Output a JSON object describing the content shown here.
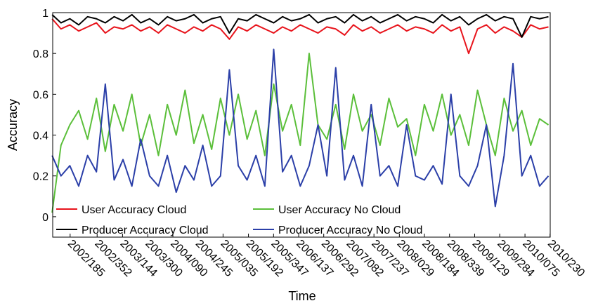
{
  "chart_data": {
    "type": "line",
    "x_label": "Time",
    "y_label": "Accuracy",
    "x": [
      2002.2,
      2002.35,
      2002.5,
      2002.65,
      2002.8,
      2002.95,
      2003.1,
      2003.25,
      2003.4,
      2003.55,
      2003.7,
      2003.85,
      2004.0,
      2004.15,
      2004.3,
      2004.45,
      2004.6,
      2004.75,
      2004.9,
      2005.05,
      2005.2,
      2005.35,
      2005.5,
      2005.65,
      2005.8,
      2005.95,
      2006.1,
      2006.25,
      2006.4,
      2006.55,
      2006.7,
      2006.85,
      2007.0,
      2007.15,
      2007.3,
      2007.45,
      2007.6,
      2007.75,
      2007.9,
      2008.05,
      2008.2,
      2008.35,
      2008.5,
      2008.65,
      2008.8,
      2008.95,
      2009.1,
      2009.25,
      2009.4,
      2009.55,
      2009.7,
      2009.85,
      2010.0,
      2010.15,
      2010.3,
      2010.45,
      2010.6
    ],
    "series": [
      {
        "name": "User Accuracy Cloud",
        "color": "#e8141c",
        "values": [
          0.97,
          0.92,
          0.94,
          0.91,
          0.93,
          0.95,
          0.9,
          0.93,
          0.92,
          0.94,
          0.91,
          0.93,
          0.9,
          0.94,
          0.92,
          0.9,
          0.93,
          0.91,
          0.94,
          0.92,
          0.87,
          0.93,
          0.91,
          0.94,
          0.92,
          0.9,
          0.93,
          0.91,
          0.94,
          0.92,
          0.9,
          0.93,
          0.92,
          0.89,
          0.94,
          0.91,
          0.93,
          0.9,
          0.92,
          0.94,
          0.91,
          0.93,
          0.92,
          0.9,
          0.94,
          0.91,
          0.93,
          0.8,
          0.92,
          0.94,
          0.9,
          0.93,
          0.91,
          0.88,
          0.94,
          0.92,
          0.93
        ]
      },
      {
        "name": "User Accuracy No Cloud",
        "color": "#5bbf3a",
        "values": [
          0.02,
          0.35,
          0.45,
          0.52,
          0.38,
          0.58,
          0.32,
          0.55,
          0.42,
          0.6,
          0.35,
          0.5,
          0.3,
          0.55,
          0.4,
          0.62,
          0.36,
          0.5,
          0.33,
          0.58,
          0.4,
          0.6,
          0.38,
          0.52,
          0.3,
          0.65,
          0.42,
          0.55,
          0.35,
          0.8,
          0.45,
          0.38,
          0.55,
          0.33,
          0.6,
          0.42,
          0.5,
          0.35,
          0.58,
          0.44,
          0.48,
          0.3,
          0.55,
          0.42,
          0.6,
          0.4,
          0.5,
          0.35,
          0.62,
          0.45,
          0.3,
          0.58,
          0.42,
          0.52,
          0.35,
          0.48,
          0.45
        ]
      },
      {
        "name": "Producer Accuracy Cloud",
        "color": "#000000",
        "values": [
          0.99,
          0.95,
          0.97,
          0.94,
          0.98,
          0.97,
          0.95,
          0.98,
          0.96,
          0.99,
          0.95,
          0.97,
          0.94,
          0.98,
          0.96,
          0.97,
          0.99,
          0.95,
          0.97,
          0.98,
          0.9,
          0.97,
          0.96,
          0.99,
          0.97,
          0.95,
          0.98,
          0.96,
          0.97,
          0.99,
          0.95,
          0.97,
          0.98,
          0.95,
          0.99,
          0.96,
          0.98,
          0.95,
          0.97,
          0.99,
          0.96,
          0.98,
          0.97,
          0.95,
          0.99,
          0.96,
          0.98,
          0.94,
          0.97,
          0.99,
          0.96,
          0.98,
          0.97,
          0.88,
          0.98,
          0.97,
          0.98
        ]
      },
      {
        "name": "Producer Accuracy No Cloud",
        "color": "#2b3fa8",
        "values": [
          0.3,
          0.2,
          0.25,
          0.15,
          0.3,
          0.22,
          0.65,
          0.18,
          0.28,
          0.15,
          0.38,
          0.2,
          0.15,
          0.3,
          0.12,
          0.25,
          0.18,
          0.35,
          0.15,
          0.2,
          0.72,
          0.25,
          0.18,
          0.3,
          0.15,
          0.82,
          0.22,
          0.3,
          0.15,
          0.25,
          0.45,
          0.2,
          0.73,
          0.18,
          0.3,
          0.15,
          0.55,
          0.2,
          0.25,
          0.15,
          0.45,
          0.2,
          0.18,
          0.25,
          0.16,
          0.6,
          0.2,
          0.15,
          0.25,
          0.45,
          0.05,
          0.3,
          0.75,
          0.2,
          0.3,
          0.15,
          0.2
        ]
      }
    ],
    "xlim": [
      2002.21,
      2010.63
    ],
    "xticks": [
      {
        "value": 2002.505,
        "label": "2002/185"
      },
      {
        "value": 2002.962,
        "label": "2002/352"
      },
      {
        "value": 2003.392,
        "label": "2003/144"
      },
      {
        "value": 2003.819,
        "label": "2003/300"
      },
      {
        "value": 2004.244,
        "label": "2004/090"
      },
      {
        "value": 2004.668,
        "label": "2004/245"
      },
      {
        "value": 2005.093,
        "label": "2005/035"
      },
      {
        "value": 2005.523,
        "label": "2005/192"
      },
      {
        "value": 2005.948,
        "label": "2005/347"
      },
      {
        "value": 2006.373,
        "label": "2006/137"
      },
      {
        "value": 2006.797,
        "label": "2006/292"
      },
      {
        "value": 2007.222,
        "label": "2007/082"
      },
      {
        "value": 2007.647,
        "label": "2007/237"
      },
      {
        "value": 2008.077,
        "label": "2008/029"
      },
      {
        "value": 2008.501,
        "label": "2008/184"
      },
      {
        "value": 2008.926,
        "label": "2008/339"
      },
      {
        "value": 2009.351,
        "label": "2009/129"
      },
      {
        "value": 2009.775,
        "label": "2009/284"
      },
      {
        "value": 2010.203,
        "label": "2010/075"
      },
      {
        "value": 2010.627,
        "label": "2010/230"
      }
    ],
    "ylim": [
      -0.1,
      1
    ],
    "yticks": [
      0,
      0.2,
      0.4,
      0.6,
      0.8,
      1
    ],
    "grid": false,
    "legend": "lower left"
  }
}
